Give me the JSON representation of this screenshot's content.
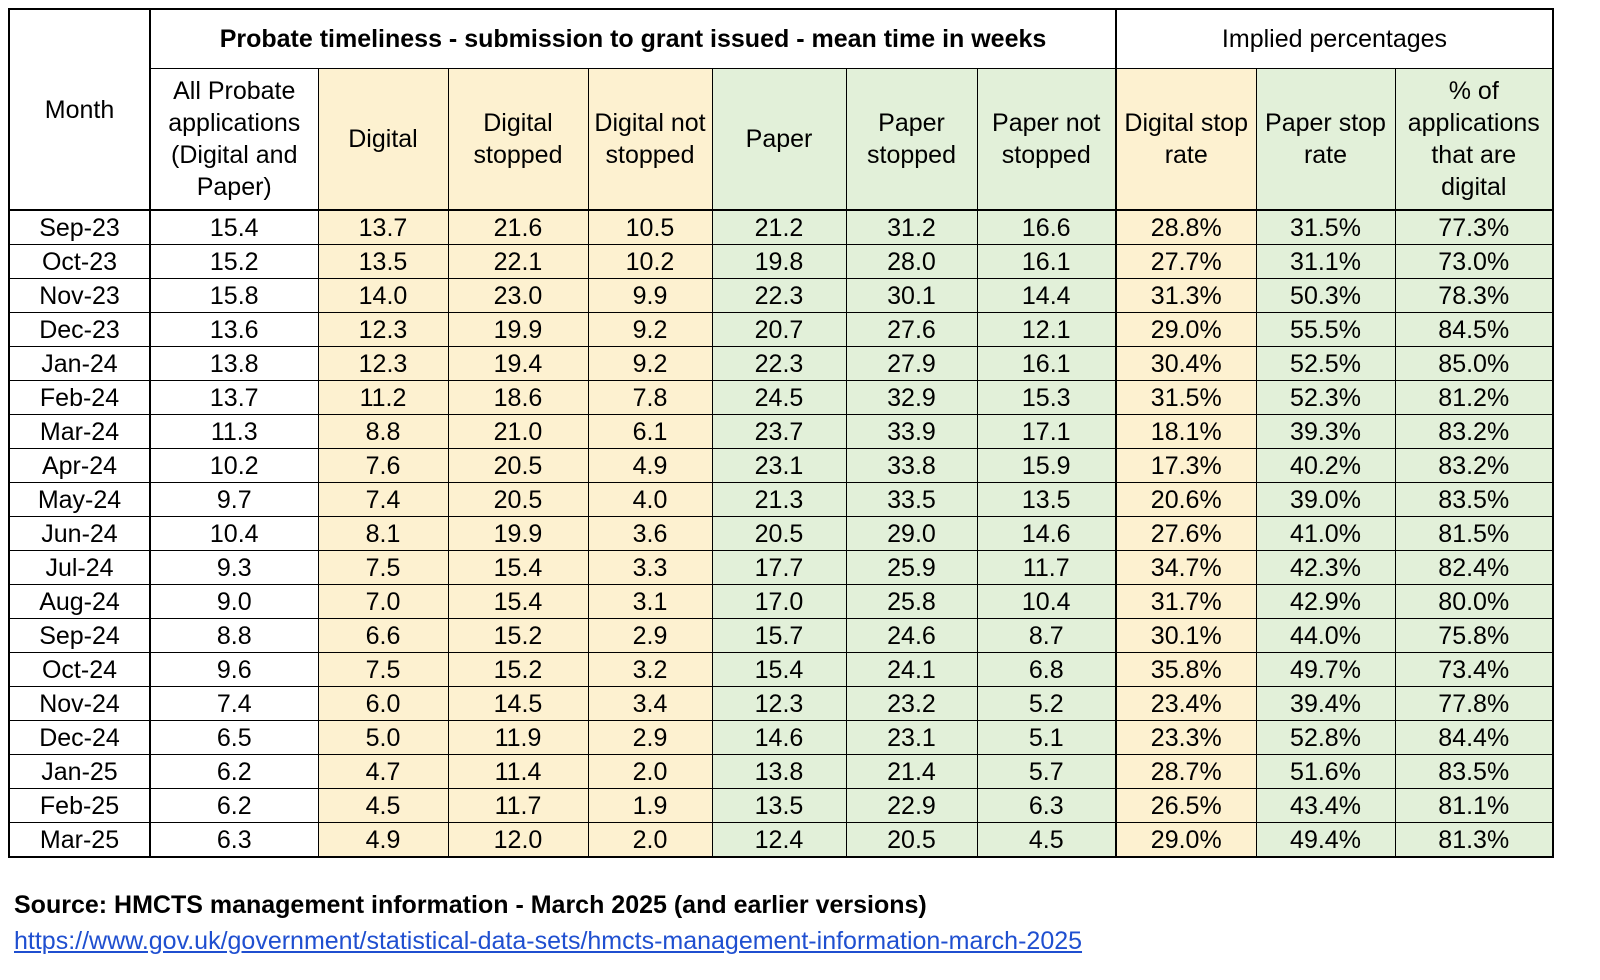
{
  "table": {
    "group_headers": {
      "timeliness": "Probate timeliness - submission to grant issued - mean time in weeks",
      "implied": "Implied percentages"
    },
    "columns": [
      "Month",
      "All Probate applications (Digital and Paper)",
      "Digital",
      "Digital stopped",
      "Digital not stopped",
      "Paper",
      "Paper stopped",
      "Paper not stopped",
      "Digital stop rate",
      "Paper stop rate",
      "% of applications that are digital"
    ],
    "rows": [
      [
        "Sep-23",
        "15.4",
        "13.7",
        "21.6",
        "10.5",
        "21.2",
        "31.2",
        "16.6",
        "28.8%",
        "31.5%",
        "77.3%"
      ],
      [
        "Oct-23",
        "15.2",
        "13.5",
        "22.1",
        "10.2",
        "19.8",
        "28.0",
        "16.1",
        "27.7%",
        "31.1%",
        "73.0%"
      ],
      [
        "Nov-23",
        "15.8",
        "14.0",
        "23.0",
        "9.9",
        "22.3",
        "30.1",
        "14.4",
        "31.3%",
        "50.3%",
        "78.3%"
      ],
      [
        "Dec-23",
        "13.6",
        "12.3",
        "19.9",
        "9.2",
        "20.7",
        "27.6",
        "12.1",
        "29.0%",
        "55.5%",
        "84.5%"
      ],
      [
        "Jan-24",
        "13.8",
        "12.3",
        "19.4",
        "9.2",
        "22.3",
        "27.9",
        "16.1",
        "30.4%",
        "52.5%",
        "85.0%"
      ],
      [
        "Feb-24",
        "13.7",
        "11.2",
        "18.6",
        "7.8",
        "24.5",
        "32.9",
        "15.3",
        "31.5%",
        "52.3%",
        "81.2%"
      ],
      [
        "Mar-24",
        "11.3",
        "8.8",
        "21.0",
        "6.1",
        "23.7",
        "33.9",
        "17.1",
        "18.1%",
        "39.3%",
        "83.2%"
      ],
      [
        "Apr-24",
        "10.2",
        "7.6",
        "20.5",
        "4.9",
        "23.1",
        "33.8",
        "15.9",
        "17.3%",
        "40.2%",
        "83.2%"
      ],
      [
        "May-24",
        "9.7",
        "7.4",
        "20.5",
        "4.0",
        "21.3",
        "33.5",
        "13.5",
        "20.6%",
        "39.0%",
        "83.5%"
      ],
      [
        "Jun-24",
        "10.4",
        "8.1",
        "19.9",
        "3.6",
        "20.5",
        "29.0",
        "14.6",
        "27.6%",
        "41.0%",
        "81.5%"
      ],
      [
        "Jul-24",
        "9.3",
        "7.5",
        "15.4",
        "3.3",
        "17.7",
        "25.9",
        "11.7",
        "34.7%",
        "42.3%",
        "82.4%"
      ],
      [
        "Aug-24",
        "9.0",
        "7.0",
        "15.4",
        "3.1",
        "17.0",
        "25.8",
        "10.4",
        "31.7%",
        "42.9%",
        "80.0%"
      ],
      [
        "Sep-24",
        "8.8",
        "6.6",
        "15.2",
        "2.9",
        "15.7",
        "24.6",
        "8.7",
        "30.1%",
        "44.0%",
        "75.8%"
      ],
      [
        "Oct-24",
        "9.6",
        "7.5",
        "15.2",
        "3.2",
        "15.4",
        "24.1",
        "6.8",
        "35.8%",
        "49.7%",
        "73.4%"
      ],
      [
        "Nov-24",
        "7.4",
        "6.0",
        "14.5",
        "3.4",
        "12.3",
        "23.2",
        "5.2",
        "23.4%",
        "39.4%",
        "77.8%"
      ],
      [
        "Dec-24",
        "6.5",
        "5.0",
        "11.9",
        "2.9",
        "14.6",
        "23.1",
        "5.1",
        "23.3%",
        "52.8%",
        "84.4%"
      ],
      [
        "Jan-25",
        "6.2",
        "4.7",
        "11.4",
        "2.0",
        "13.8",
        "21.4",
        "5.7",
        "28.7%",
        "51.6%",
        "83.5%"
      ],
      [
        "Feb-25",
        "6.2",
        "4.5",
        "11.7",
        "1.9",
        "13.5",
        "22.9",
        "6.3",
        "26.5%",
        "43.4%",
        "81.1%"
      ],
      [
        "Mar-25",
        "6.3",
        "4.9",
        "12.0",
        "2.0",
        "12.4",
        "20.5",
        "4.5",
        "29.0%",
        "49.4%",
        "81.3%"
      ]
    ]
  },
  "source": {
    "text": "Source: HMCTS management information - March 2025 (and earlier versions)",
    "link": "https://www.gov.uk/government/statistical-data-sets/hmcts-management-information-march-2025"
  },
  "colors": {
    "digital_fill": "#fdf1d0",
    "paper_fill": "#e2f0d9",
    "link": "#1f4fd0"
  }
}
